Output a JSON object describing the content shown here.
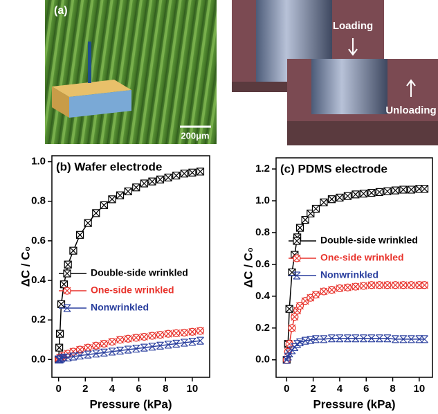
{
  "panel_a": {
    "label": "(a)",
    "scale_bar": "200μm",
    "loading": "Loading",
    "unloading": "Unloading"
  },
  "chart_data": [
    {
      "type": "line",
      "title": "(b) Wafer electrode",
      "x_label": "Pressure (kPa)",
      "y_label": "ΔC / C₀",
      "x": [
        0,
        0.05,
        0.1,
        0.2,
        0.4,
        0.7,
        1.1,
        1.6,
        2.2,
        2.8,
        3.4,
        4,
        4.6,
        5.2,
        5.8,
        6.4,
        7,
        7.6,
        8.2,
        8.8,
        9.4,
        10,
        10.6
      ],
      "series": [
        {
          "name": "Double-side wrinkled",
          "color": "#000000",
          "marker": "boxx",
          "values": [
            0,
            0.06,
            0.13,
            0.28,
            0.38,
            0.48,
            0.55,
            0.63,
            0.69,
            0.74,
            0.78,
            0.81,
            0.83,
            0.85,
            0.87,
            0.89,
            0.9,
            0.91,
            0.92,
            0.93,
            0.94,
            0.945,
            0.95
          ]
        },
        {
          "name": "One-side wrinkled",
          "color": "#e8322b",
          "marker": "circlex",
          "values": [
            0,
            0,
            0.01,
            0.01,
            0.02,
            0.03,
            0.04,
            0.05,
            0.06,
            0.07,
            0.08,
            0.09,
            0.1,
            0.105,
            0.11,
            0.115,
            0.12,
            0.125,
            0.13,
            0.133,
            0.136,
            0.14,
            0.145
          ]
        },
        {
          "name": "Nonwrinkled",
          "color": "#2a3f9e",
          "marker": "star",
          "values": [
            0,
            0,
            0,
            0.005,
            0.01,
            0.01,
            0.015,
            0.02,
            0.025,
            0.03,
            0.035,
            0.04,
            0.045,
            0.05,
            0.055,
            0.06,
            0.065,
            0.07,
            0.075,
            0.08,
            0.085,
            0.09,
            0.095
          ]
        }
      ],
      "xlim": [
        -0.5,
        11.3
      ],
      "xticks": [
        0,
        2,
        4,
        6,
        8,
        10
      ],
      "ylim": [
        -0.09,
        1.03
      ],
      "yticks": [
        {
          "value": 0,
          "label": "0.0"
        },
        0.2,
        0.4,
        0.6,
        0.8,
        {
          "value": 1,
          "label": "1.0"
        }
      ],
      "legend": "center",
      "grid": false
    },
    {
      "type": "line",
      "title": "(c) PDMS electrode",
      "x_label": "Pressure (kPa)",
      "y_label": "ΔC / C₀",
      "x": [
        0,
        0.1,
        0.2,
        0.4,
        0.6,
        0.8,
        1,
        1.4,
        1.8,
        2.2,
        2.8,
        3.4,
        4,
        4.6,
        5.2,
        5.8,
        6.4,
        7,
        7.6,
        8.2,
        8.8,
        9.4,
        10,
        10.4
      ],
      "series": [
        {
          "name": "Double-side wrinkled",
          "color": "#000000",
          "marker": "boxx",
          "values": [
            0,
            0.1,
            0.32,
            0.55,
            0.66,
            0.77,
            0.83,
            0.88,
            0.92,
            0.95,
            0.99,
            1.01,
            1.02,
            1.03,
            1.04,
            1.045,
            1.05,
            1.055,
            1.06,
            1.065,
            1.07,
            1.07,
            1.075,
            1.075
          ]
        },
        {
          "name": "One-side wrinkled",
          "color": "#e8322b",
          "marker": "circlex",
          "values": [
            0,
            0.05,
            0.1,
            0.2,
            0.27,
            0.31,
            0.34,
            0.37,
            0.39,
            0.41,
            0.43,
            0.44,
            0.45,
            0.455,
            0.46,
            0.465,
            0.47,
            0.47,
            0.47,
            0.47,
            0.47,
            0.47,
            0.47,
            0.47
          ]
        },
        {
          "name": "Nonwrinkled",
          "color": "#2a3f9e",
          "marker": "star",
          "values": [
            0,
            0.02,
            0.04,
            0.06,
            0.08,
            0.1,
            0.11,
            0.12,
            0.125,
            0.13,
            0.13,
            0.135,
            0.135,
            0.135,
            0.135,
            0.135,
            0.135,
            0.135,
            0.135,
            0.13,
            0.13,
            0.13,
            0.13,
            0.13
          ]
        }
      ],
      "xlim": [
        -0.8,
        11
      ],
      "xticks": [
        0,
        2,
        4,
        6,
        8,
        10
      ],
      "ylim": [
        -0.11,
        1.27
      ],
      "yticks": [
        {
          "value": 0,
          "label": "0.0"
        },
        0.2,
        0.4,
        0.6,
        0.8,
        {
          "value": 1,
          "label": "1.0"
        },
        1.2
      ],
      "legend": "right",
      "grid": false
    }
  ]
}
